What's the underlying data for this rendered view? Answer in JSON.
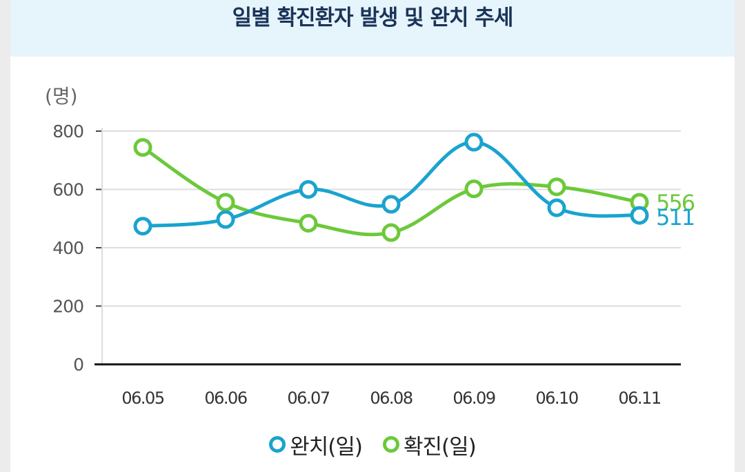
{
  "title": "일별 확진환자 발생 및 완치 추세",
  "unit_label": "(명)",
  "colors": {
    "recovered": "#1aa3cf",
    "confirmed": "#6cc93a",
    "header_bg": "#e6f4fb"
  },
  "chart_data": {
    "type": "line",
    "title": "일별 확진환자 발생 및 완치 추세",
    "ylabel": "(명)",
    "xlabel": "",
    "ylim": [
      0,
      800
    ],
    "yticks": [
      "0",
      "200",
      "400",
      "600",
      "800"
    ],
    "categories": [
      "06.05",
      "06.06",
      "06.07",
      "06.08",
      "06.09",
      "06.10",
      "06.11"
    ],
    "series": [
      {
        "name": "완치(일)",
        "color": "#1aa3cf",
        "values": [
          474,
          497,
          600,
          549,
          762,
          537,
          511
        ],
        "end_label": "511"
      },
      {
        "name": "확진(일)",
        "color": "#6cc93a",
        "values": [
          744,
          556,
          484,
          452,
          602,
          609,
          556
        ],
        "end_label": "556"
      }
    ],
    "grid": true,
    "legend_position": "bottom"
  }
}
